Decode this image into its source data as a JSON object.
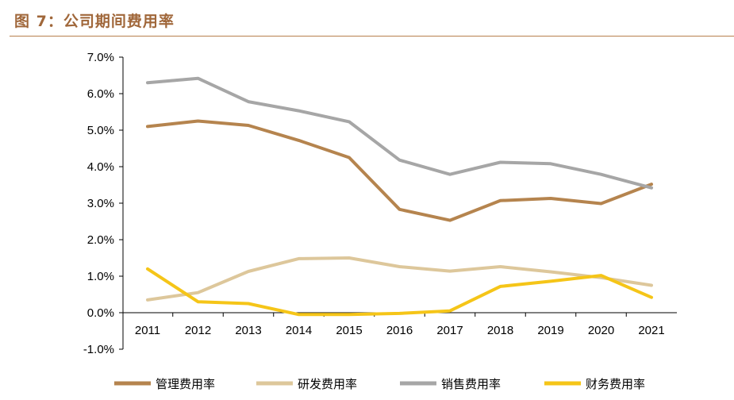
{
  "figure": {
    "title": "图 7：公司期间费用率"
  },
  "chart_data": {
    "type": "line",
    "title": "",
    "xlabel": "",
    "ylabel": "",
    "categories": [
      "2011",
      "2012",
      "2013",
      "2014",
      "2015",
      "2016",
      "2017",
      "2018",
      "2019",
      "2020",
      "2021"
    ],
    "ylim": [
      -1.0,
      7.0
    ],
    "yticks": [
      "-1.0%",
      "0.0%",
      "1.0%",
      "2.0%",
      "3.0%",
      "4.0%",
      "5.0%",
      "6.0%",
      "7.0%"
    ],
    "ytick_values": [
      -1,
      0,
      1,
      2,
      3,
      4,
      5,
      6,
      7
    ],
    "grid": false,
    "legend_position": "bottom",
    "series": [
      {
        "name": "管理费用率",
        "color": "#b5844e",
        "values": [
          5.1,
          5.25,
          5.13,
          4.72,
          4.25,
          2.83,
          2.53,
          3.07,
          3.13,
          2.99,
          3.52
        ]
      },
      {
        "name": "研发费用率",
        "color": "#ddc79b",
        "values": [
          0.35,
          0.55,
          1.13,
          1.48,
          1.5,
          1.26,
          1.14,
          1.26,
          1.12,
          0.96,
          0.75
        ]
      },
      {
        "name": "销售费用率",
        "color": "#a6a6a6",
        "values": [
          6.3,
          6.42,
          5.78,
          5.53,
          5.23,
          4.18,
          3.79,
          4.12,
          4.08,
          3.79,
          3.42
        ]
      },
      {
        "name": "财务费用率",
        "color": "#f5c518",
        "values": [
          1.2,
          0.3,
          0.25,
          -0.05,
          -0.05,
          -0.02,
          0.05,
          0.72,
          0.86,
          1.02,
          0.42
        ]
      }
    ]
  }
}
